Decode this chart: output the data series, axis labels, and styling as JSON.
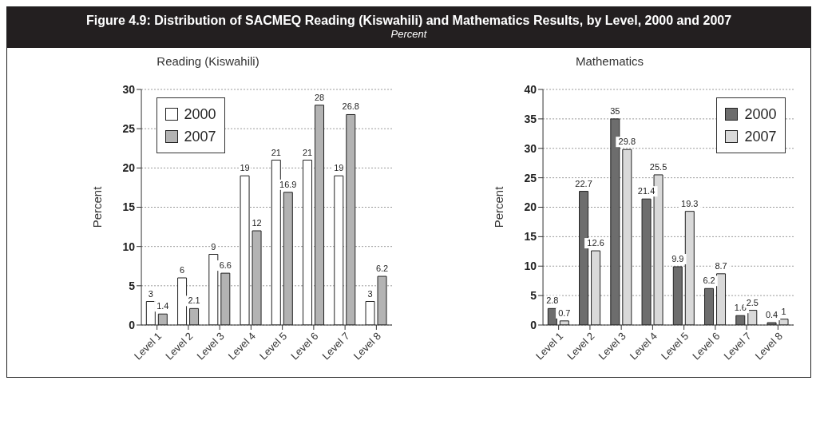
{
  "chart_data": [
    {
      "type": "bar",
      "title": "Reading (Kiswahili)",
      "ylabel": "Percent",
      "annotations": [
        "Figure 4.9: Distribution of SACMEQ Reading (Kiswahili) and Mathematics Results, by Level, 2000 and 2007",
        "Percent"
      ],
      "categories": [
        "Level 1",
        "Level 2",
        "Level 3",
        "Level 4",
        "Level 5",
        "Level 6",
        "Level 7",
        "Level 8"
      ],
      "series": [
        {
          "name": "2000",
          "color": "#ffffff",
          "values": [
            3,
            6,
            9,
            19,
            21,
            21,
            19,
            3
          ]
        },
        {
          "name": "2007",
          "color": "#b3b3b3",
          "values": [
            1.4,
            2.1,
            6.6,
            12,
            16.9,
            28,
            26.8,
            6.2
          ]
        }
      ],
      "ylim": [
        0,
        30
      ],
      "yticks": [
        0,
        5,
        10,
        15,
        20,
        25,
        30
      ],
      "grid": "y",
      "legend": "top left",
      "data_labels": true
    },
    {
      "type": "bar",
      "title": "Mathematics",
      "ylabel": "Percent",
      "categories": [
        "Level 1",
        "Level 2",
        "Level 3",
        "Level 4",
        "Level 5",
        "Level 6",
        "Level 7",
        "Level 8"
      ],
      "series": [
        {
          "name": "2000",
          "color": "#6d6d6d",
          "values": [
            2.8,
            22.7,
            35,
            21.4,
            9.9,
            6.2,
            1.6,
            0.4
          ]
        },
        {
          "name": "2007",
          "color": "#d9d9d9",
          "values": [
            0.7,
            12.6,
            29.8,
            25.5,
            19.3,
            8.7,
            2.5,
            1
          ]
        }
      ],
      "ylim": [
        0,
        40
      ],
      "yticks": [
        0,
        5,
        10,
        15,
        20,
        25,
        30,
        35,
        40
      ],
      "grid": "y",
      "legend": "top right",
      "data_labels": true
    }
  ]
}
